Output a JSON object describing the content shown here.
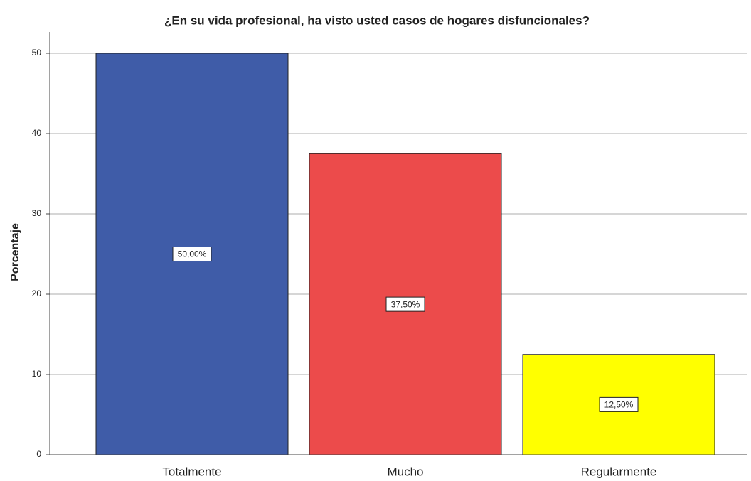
{
  "chart_data": {
    "type": "bar",
    "title": "¿En su vida profesional, ha visto usted casos de hogares disfuncionales?",
    "y_label": "Porcentaje",
    "categories": [
      "Totalmente",
      "Mucho",
      "Regularmente"
    ],
    "values": [
      50,
      37.5,
      12.5
    ],
    "value_labels": [
      "50,00%",
      "37,50%",
      "12,50%"
    ],
    "colors": [
      "#3f5ca8",
      "#ec4b4b",
      "#ffff00"
    ],
    "ylim": [
      0,
      50
    ],
    "yticks": [
      0,
      10,
      20,
      30,
      40,
      50
    ],
    "grid": true
  }
}
